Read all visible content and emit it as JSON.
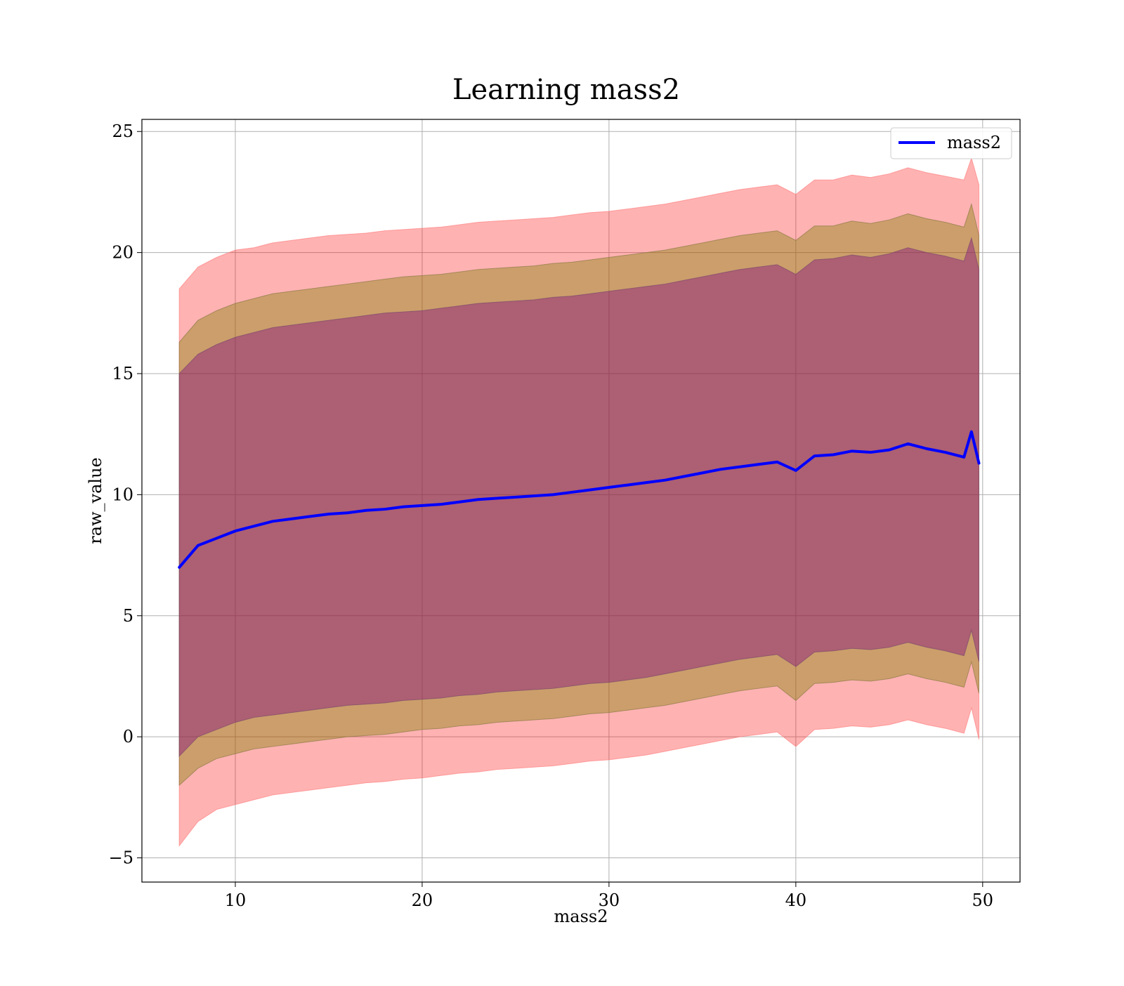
{
  "chart_data": {
    "type": "line",
    "title": "Learning mass2",
    "xlabel": "mass2",
    "ylabel": "raw_value",
    "xlim": [
      5,
      52
    ],
    "ylim": [
      -6,
      25.5
    ],
    "xticks": [
      10,
      20,
      30,
      40,
      50
    ],
    "yticks": [
      -5,
      0,
      5,
      10,
      15,
      20,
      25
    ],
    "xtick_labels": [
      "10",
      "20",
      "30",
      "40",
      "50"
    ],
    "ytick_labels": [
      "−5",
      "0",
      "5",
      "10",
      "15",
      "20",
      "25"
    ],
    "grid": true,
    "legend": {
      "placement": "top-right",
      "entries": [
        "mass2"
      ]
    },
    "colors": {
      "line": "#0000ff",
      "band_outer": "#ff0000",
      "band_middle": "#808000",
      "band_inner": "#800080"
    },
    "x": [
      7,
      8,
      9,
      10,
      11,
      12,
      13,
      14,
      15,
      16,
      17,
      18,
      19,
      20,
      21,
      22,
      23,
      24,
      25,
      26,
      27,
      28,
      29,
      30,
      31,
      32,
      33,
      34,
      35,
      36,
      37,
      38,
      39,
      40,
      41,
      42,
      43,
      44,
      45,
      46,
      47,
      48,
      49,
      49.4,
      49.8
    ],
    "series": [
      {
        "name": "mass2",
        "values": [
          7.0,
          7.9,
          8.2,
          8.5,
          8.7,
          8.9,
          9.0,
          9.1,
          9.2,
          9.25,
          9.35,
          9.4,
          9.5,
          9.55,
          9.6,
          9.7,
          9.8,
          9.85,
          9.9,
          9.95,
          10.0,
          10.1,
          10.2,
          10.3,
          10.4,
          10.5,
          10.6,
          10.75,
          10.9,
          11.05,
          11.15,
          11.25,
          11.35,
          11.0,
          11.6,
          11.65,
          11.8,
          11.75,
          11.85,
          12.1,
          11.9,
          11.75,
          11.55,
          12.6,
          11.3
        ],
        "bands": [
          {
            "level": "outer",
            "upper": [
              18.5,
              19.4,
              19.8,
              20.1,
              20.2,
              20.4,
              20.5,
              20.6,
              20.7,
              20.75,
              20.8,
              20.9,
              20.95,
              21.0,
              21.05,
              21.15,
              21.25,
              21.3,
              21.35,
              21.4,
              21.45,
              21.55,
              21.65,
              21.7,
              21.8,
              21.9,
              22.0,
              22.15,
              22.3,
              22.45,
              22.6,
              22.7,
              22.8,
              22.4,
              23.0,
              23.0,
              23.2,
              23.1,
              23.25,
              23.5,
              23.3,
              23.15,
              23.0,
              23.9,
              22.8
            ],
            "lower": [
              -4.5,
              -3.5,
              -3.0,
              -2.8,
              -2.6,
              -2.4,
              -2.3,
              -2.2,
              -2.1,
              -2.0,
              -1.9,
              -1.85,
              -1.75,
              -1.7,
              -1.6,
              -1.5,
              -1.45,
              -1.35,
              -1.3,
              -1.25,
              -1.2,
              -1.1,
              -1.0,
              -0.95,
              -0.85,
              -0.75,
              -0.6,
              -0.45,
              -0.3,
              -0.15,
              0.0,
              0.1,
              0.2,
              -0.4,
              0.3,
              0.35,
              0.45,
              0.4,
              0.5,
              0.7,
              0.5,
              0.35,
              0.15,
              1.2,
              -0.1
            ]
          },
          {
            "level": "middle",
            "upper": [
              16.3,
              17.2,
              17.6,
              17.9,
              18.1,
              18.3,
              18.4,
              18.5,
              18.6,
              18.7,
              18.8,
              18.9,
              19.0,
              19.05,
              19.1,
              19.2,
              19.3,
              19.35,
              19.4,
              19.45,
              19.55,
              19.6,
              19.7,
              19.8,
              19.9,
              20.0,
              20.1,
              20.25,
              20.4,
              20.55,
              20.7,
              20.8,
              20.9,
              20.5,
              21.1,
              21.1,
              21.3,
              21.2,
              21.35,
              21.6,
              21.4,
              21.25,
              21.05,
              22.0,
              20.7
            ],
            "lower": [
              -2.0,
              -1.3,
              -0.9,
              -0.7,
              -0.5,
              -0.4,
              -0.3,
              -0.2,
              -0.1,
              0.0,
              0.05,
              0.1,
              0.2,
              0.3,
              0.35,
              0.45,
              0.5,
              0.6,
              0.65,
              0.7,
              0.75,
              0.85,
              0.95,
              1.0,
              1.1,
              1.2,
              1.3,
              1.45,
              1.6,
              1.75,
              1.9,
              2.0,
              2.1,
              1.5,
              2.2,
              2.25,
              2.35,
              2.3,
              2.4,
              2.6,
              2.4,
              2.25,
              2.05,
              3.1,
              1.8
            ]
          },
          {
            "level": "inner",
            "upper": [
              15.0,
              15.8,
              16.2,
              16.5,
              16.7,
              16.9,
              17.0,
              17.1,
              17.2,
              17.3,
              17.4,
              17.5,
              17.55,
              17.6,
              17.7,
              17.8,
              17.9,
              17.95,
              18.0,
              18.05,
              18.15,
              18.2,
              18.3,
              18.4,
              18.5,
              18.6,
              18.7,
              18.85,
              19.0,
              19.15,
              19.3,
              19.4,
              19.5,
              19.1,
              19.7,
              19.75,
              19.9,
              19.8,
              19.95,
              20.2,
              20.0,
              19.85,
              19.65,
              20.6,
              19.3
            ],
            "lower": [
              -0.8,
              0.0,
              0.3,
              0.6,
              0.8,
              0.9,
              1.0,
              1.1,
              1.2,
              1.3,
              1.35,
              1.4,
              1.5,
              1.55,
              1.6,
              1.7,
              1.75,
              1.85,
              1.9,
              1.95,
              2.0,
              2.1,
              2.2,
              2.25,
              2.35,
              2.45,
              2.6,
              2.75,
              2.9,
              3.05,
              3.2,
              3.3,
              3.4,
              2.9,
              3.5,
              3.55,
              3.65,
              3.6,
              3.7,
              3.9,
              3.7,
              3.55,
              3.35,
              4.4,
              3.1
            ]
          }
        ]
      }
    ]
  }
}
